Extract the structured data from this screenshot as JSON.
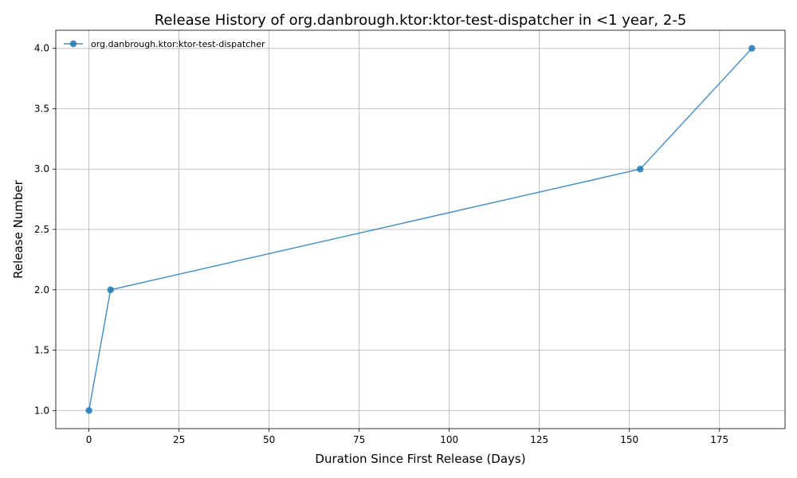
{
  "chart_data": {
    "type": "line",
    "title": "Release History of org.danbrough.ktor:ktor-test-dispatcher in <1 year, 2-5",
    "xlabel": "Duration Since First Release (Days)",
    "ylabel": "Release Number",
    "xlim": [
      -9.2,
      193.2
    ],
    "ylim": [
      0.85,
      4.15
    ],
    "x_ticks": [
      0,
      25,
      50,
      75,
      100,
      125,
      150,
      175
    ],
    "y_ticks": [
      1.0,
      1.5,
      2.0,
      2.5,
      3.0,
      3.5,
      4.0
    ],
    "x_tick_labels": [
      "0",
      "25",
      "50",
      "75",
      "100",
      "125",
      "150",
      "175"
    ],
    "y_tick_labels": [
      "1.0",
      "1.5",
      "2.0",
      "2.5",
      "3.0",
      "3.5",
      "4.0"
    ],
    "grid": true,
    "legend_position": "top-left",
    "series": [
      {
        "name": "org.danbrough.ktor:ktor-test-dispatcher",
        "color": "#1f77b4",
        "marker": "circle",
        "x": [
          0,
          6,
          153,
          184
        ],
        "y": [
          1,
          2,
          3,
          4
        ]
      }
    ]
  }
}
